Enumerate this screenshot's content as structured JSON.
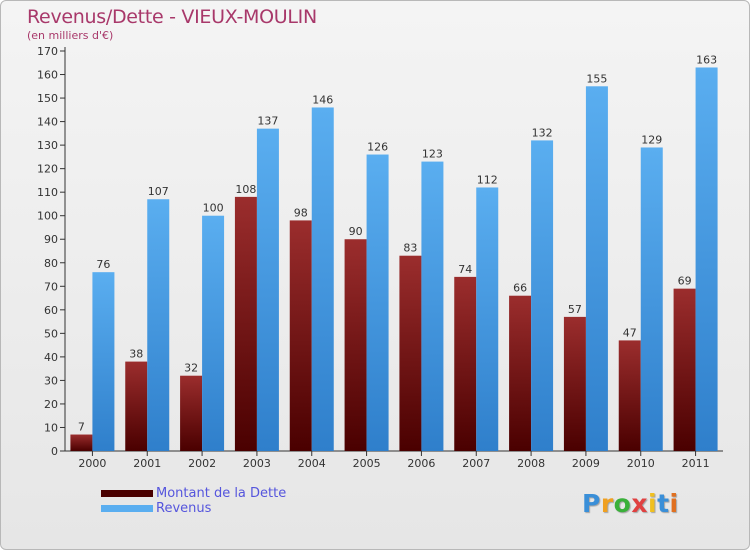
{
  "title": "Revenus/Dette - VIEUX-MOULIN",
  "subtitle": "(en milliers d'€)",
  "colors": {
    "title": "#a8386a",
    "debt_top": "#9b2d2d",
    "debt_bottom": "#4a0000",
    "revenue_top": "#5aaef0",
    "revenue_bottom": "#2f7fcb",
    "legend_text": "#5555dd"
  },
  "chart_data": {
    "type": "bar",
    "categories": [
      "2000",
      "2001",
      "2002",
      "2003",
      "2004",
      "2005",
      "2006",
      "2007",
      "2008",
      "2009",
      "2010",
      "2011"
    ],
    "series": [
      {
        "name": "Montant de la Dette",
        "values": [
          7,
          38,
          32,
          108,
          98,
          90,
          83,
          74,
          66,
          57,
          47,
          69
        ]
      },
      {
        "name": "Revenus",
        "values": [
          76,
          107,
          100,
          137,
          146,
          126,
          123,
          112,
          132,
          155,
          129,
          163
        ]
      }
    ],
    "ylim": [
      0,
      170
    ],
    "yticks": [
      0,
      10,
      20,
      30,
      40,
      50,
      60,
      70,
      80,
      90,
      100,
      110,
      120,
      130,
      140,
      150,
      160,
      170
    ],
    "grid": false,
    "legend_position": "bottom-left",
    "title": "Revenus/Dette - VIEUX-MOULIN",
    "ylabel": "(en milliers d'€)"
  },
  "legend": {
    "debt_label": "Montant de la Dette",
    "revenue_label": "Revenus"
  },
  "logo": {
    "letters": [
      "P",
      "r",
      "o",
      "x",
      "i",
      "t",
      "i"
    ],
    "colors": [
      "#3a8fd8",
      "#f0a020",
      "#3ab03a",
      "#e04040",
      "#f0c020",
      "#3a8fd8",
      "#e07020"
    ]
  }
}
